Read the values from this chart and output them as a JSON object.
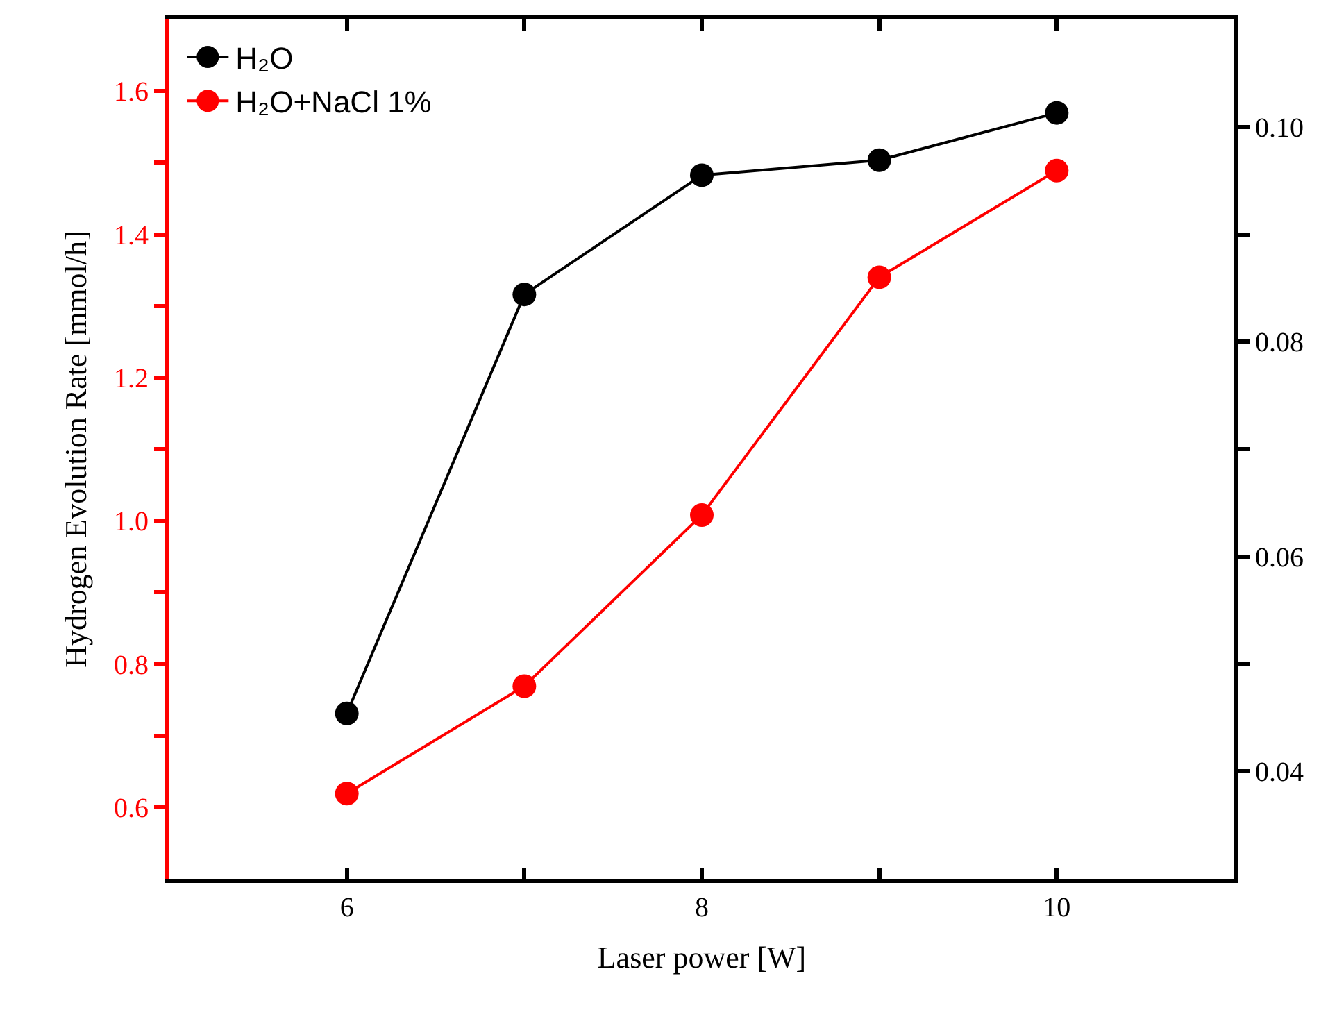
{
  "chart_data": {
    "type": "line",
    "xlabel": "Laser power [W]",
    "ylabel": "Hydrogen Evolution Rate [mmol/h]",
    "x": [
      6,
      7,
      8,
      9,
      10
    ],
    "xlim": [
      5,
      11
    ],
    "xticks": [
      6,
      {
        "value": 7,
        "label": null
      },
      8,
      {
        "value": 9,
        "label": null
      },
      10
    ],
    "ylim": [
      0.5,
      1.7
    ],
    "yticks": [
      {
        "value": 0.6,
        "label": "0.6"
      },
      {
        "value": 0.7,
        "label": null
      },
      {
        "value": 0.8,
        "label": "0.8"
      },
      {
        "value": 0.9,
        "label": null
      },
      {
        "value": 1.0,
        "label": "1.0"
      },
      {
        "value": 1.1,
        "label": null
      },
      {
        "value": 1.2,
        "label": "1.2"
      },
      {
        "value": 1.3,
        "label": null
      },
      {
        "value": 1.4,
        "label": "1.4"
      },
      {
        "value": 1.5,
        "label": null
      },
      {
        "value": 1.6,
        "label": "1.6"
      }
    ],
    "y2lim": [
      0.03,
      0.11
    ],
    "y2ticks": [
      {
        "value": 0.04,
        "label": "0.04"
      },
      {
        "value": 0.05,
        "label": null
      },
      {
        "value": 0.06,
        "label": "0.06"
      },
      {
        "value": 0.07,
        "label": null
      },
      {
        "value": 0.08,
        "label": "0.08"
      },
      {
        "value": 0.09,
        "label": null
      },
      {
        "value": 0.1,
        "label": "0.10"
      }
    ],
    "series": [
      {
        "name": "H₂O",
        "color": "#000000",
        "axis": "y2",
        "values": [
          0.0454,
          0.0844,
          0.0955,
          0.0969,
          0.1013
        ]
      },
      {
        "name": "H₂O+NaCl 1%",
        "color": "#ff0000",
        "values": [
          0.619,
          0.769,
          1.008,
          1.34,
          1.489
        ]
      }
    ],
    "legend": "top left",
    "marker": "circle",
    "line_style": "solid"
  }
}
